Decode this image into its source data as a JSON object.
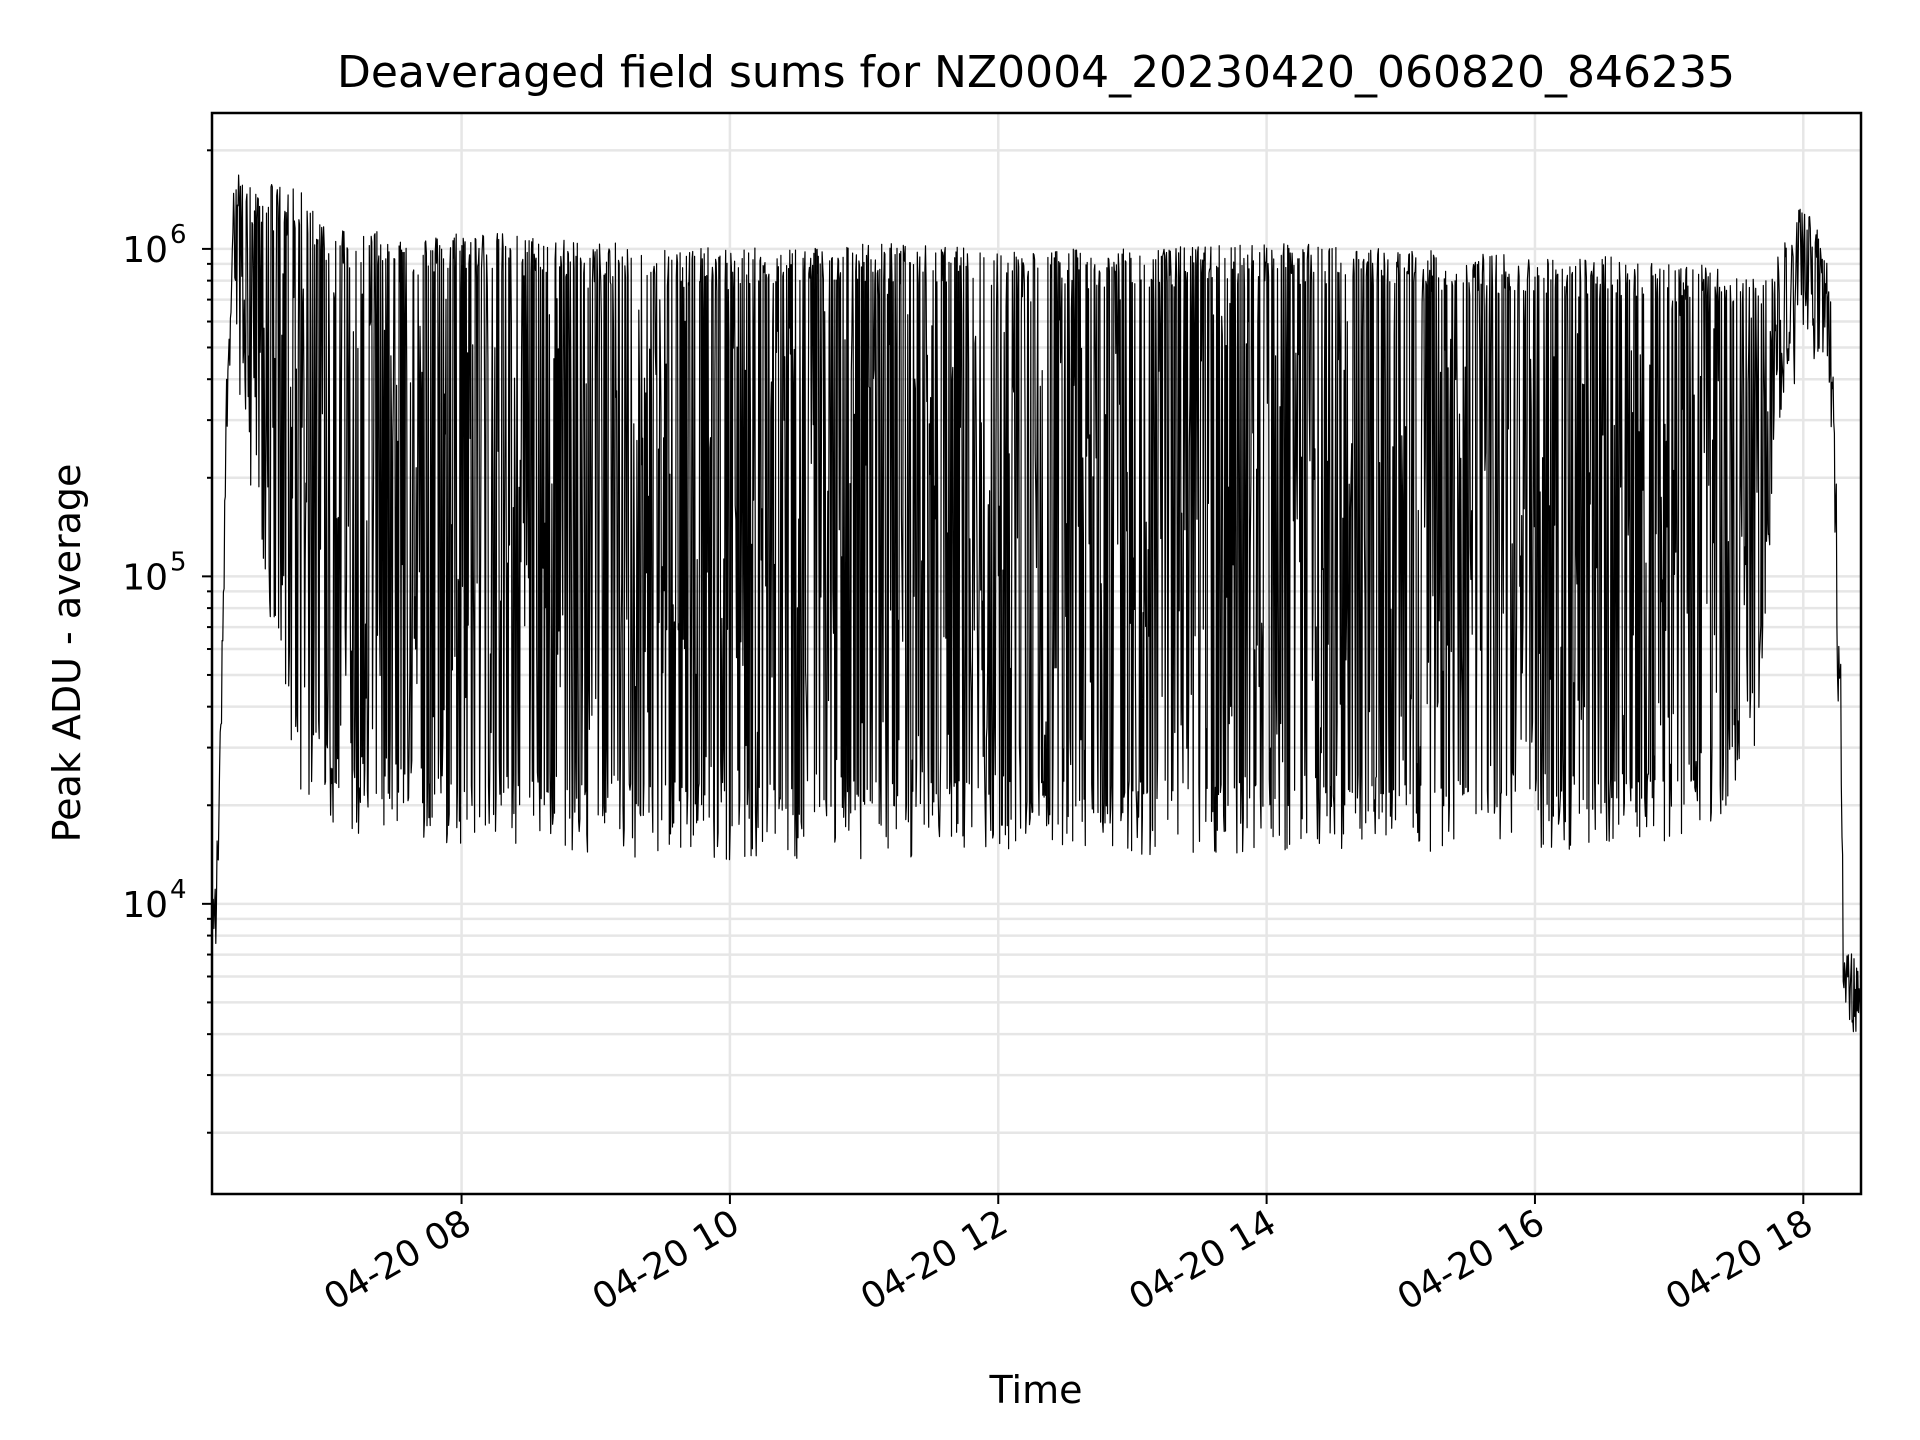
{
  "chart_data": {
    "type": "line",
    "title": "Deaveraged field sums for NZ0004_20230420_060820_846235",
    "xlabel": "Time",
    "ylabel": "Peak ADU - average",
    "x_tick_labels": [
      "04-20 08",
      "04-20 10",
      "04-20 12",
      "04-20 14",
      "04-20 16",
      "04-20 18"
    ],
    "x_tick_hours": [
      8,
      10,
      12,
      14,
      16,
      18
    ],
    "y_tick_labels": [
      {
        "base": "10",
        "exp": "4",
        "value": 10000
      },
      {
        "base": "10",
        "exp": "5",
        "value": 100000
      },
      {
        "base": "10",
        "exp": "6",
        "value": 1000000
      }
    ],
    "yscale": "log",
    "ylim": [
      1300,
      2600000
    ],
    "xlim_hours": [
      6.14,
      18.43
    ],
    "grid": true,
    "line_color": "#000000",
    "grid_color": "#e6e6e6",
    "series": [
      {
        "envelope_hours": [
          6.14,
          6.17,
          6.2,
          6.25,
          6.3,
          6.36,
          6.45,
          6.6,
          6.8,
          7.0,
          7.3,
          7.6,
          7.8,
          8.0,
          9.0,
          10.0,
          11.0,
          12.0,
          13.0,
          14.0,
          15.0,
          16.0,
          16.8,
          17.2,
          17.5,
          17.65,
          17.8,
          17.95,
          18.05,
          18.12,
          18.2,
          18.28,
          18.3,
          18.34,
          18.43
        ],
        "upper": [
          11000,
          12000,
          30000,
          500000,
          1500000,
          1800000,
          1500000,
          1600000,
          1500000,
          1200000,
          1150000,
          1100000,
          1100000,
          1150000,
          1050000,
          1000000,
          1050000,
          1000000,
          1000000,
          1050000,
          1000000,
          950000,
          950000,
          900000,
          850000,
          800000,
          1000000,
          1300000,
          1400000,
          1200000,
          800000,
          70000,
          9000,
          8000,
          6500
        ],
        "mid": [
          9000,
          9500,
          25000,
          350000,
          1100000,
          1000000,
          900000,
          600000,
          500000,
          450000,
          450000,
          450000,
          450000,
          500000,
          500000,
          500000,
          500000,
          500000,
          500000,
          500000,
          450000,
          400000,
          380000,
          350000,
          350000,
          350000,
          500000,
          800000,
          900000,
          800000,
          500000,
          40000,
          6000,
          5500,
          5000
        ],
        "lower": [
          7000,
          7000,
          20000,
          250000,
          700000,
          400000,
          200000,
          60000,
          28000,
          22000,
          20000,
          20000,
          19000,
          18500,
          17500,
          17000,
          17000,
          17000,
          17500,
          17500,
          18000,
          18000,
          18000,
          20000,
          26000,
          35000,
          300000,
          500000,
          600000,
          500000,
          300000,
          20000,
          4000,
          4000,
          4500
        ]
      }
    ]
  }
}
